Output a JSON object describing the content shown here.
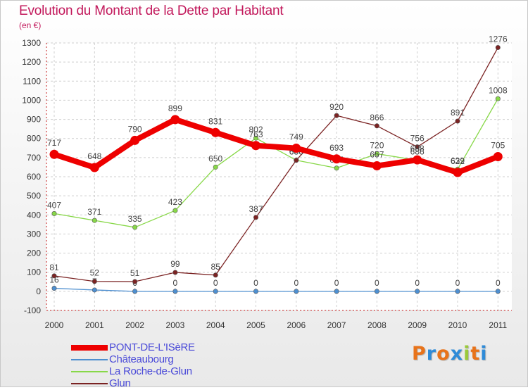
{
  "title": "Evolution du Montant de la Dette par Habitant",
  "unit": "(en €)",
  "logo": {
    "letters": [
      "P",
      "r",
      "o",
      "x",
      "i",
      "t",
      "i"
    ],
    "colors": [
      "#e8731a",
      "#2e8bd8",
      "#e8731a",
      "#2e8bd8",
      "#9ac93b",
      "#e8731a",
      "#2e8bd8"
    ]
  },
  "chart_data": {
    "type": "line",
    "x": [
      "2000",
      "2001",
      "2002",
      "2003",
      "2004",
      "2005",
      "2006",
      "2007",
      "2008",
      "2009",
      "2010",
      "2011"
    ],
    "ylim": [
      -100,
      1300
    ],
    "yticks": [
      "-100",
      "0",
      "100",
      "200",
      "300",
      "400",
      "500",
      "600",
      "700",
      "800",
      "900",
      "1000",
      "1100",
      "1200",
      "1300"
    ],
    "grid": true,
    "legend_position": "bottom-left",
    "series": [
      {
        "name": "PONT-DE-L'ISèRE",
        "color": "#ee0000",
        "values": [
          717,
          648,
          790,
          899,
          831,
          763,
          749,
          693,
          657,
          688,
          622,
          705
        ],
        "labels": [
          "717",
          "648",
          "790",
          "899",
          "831",
          "763",
          "749",
          "693",
          "657",
          "688",
          "622",
          "705"
        ],
        "style": "thick"
      },
      {
        "name": "Châteaubourg",
        "color": "#4e8fd0",
        "values": [
          16,
          7,
          0,
          0,
          0,
          0,
          0,
          0,
          0,
          0,
          0,
          0
        ],
        "labels": [
          "16",
          "7",
          "0",
          "0",
          "0",
          "0",
          "0",
          "0",
          "0",
          "0",
          "0",
          "0"
        ],
        "style": "thin"
      },
      {
        "name": "La Roche-de-Glun",
        "color": "#88d848",
        "values": [
          407,
          371,
          335,
          423,
          650,
          802,
          686,
          645,
          720,
          686,
          639,
          1008
        ],
        "labels": [
          "407",
          "371",
          "335",
          "423",
          "650",
          "802",
          "686",
          "645",
          "720",
          "686",
          "639",
          "1008"
        ],
        "style": "thin"
      },
      {
        "name": "Glun",
        "color": "#7b2323",
        "values": [
          81,
          52,
          51,
          99,
          85,
          387,
          686,
          920,
          866,
          756,
          891,
          1276
        ],
        "labels": [
          "81",
          "52",
          "51",
          "99",
          "85",
          "387",
          "686",
          "920",
          "866",
          "756",
          "891",
          "1276"
        ],
        "style": "thin"
      }
    ]
  }
}
